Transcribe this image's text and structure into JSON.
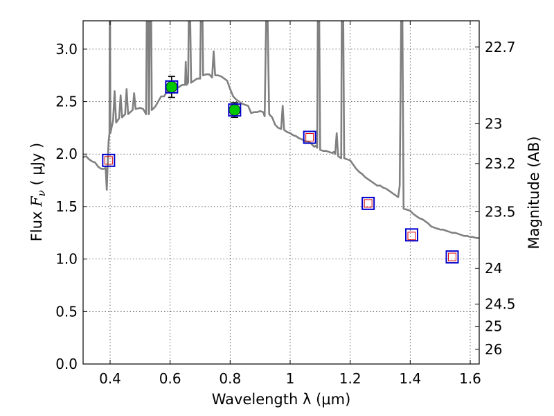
{
  "chart_data": {
    "type": "line",
    "title": "",
    "xlabel": "Wavelength  λ (μm)",
    "ylabel": "Flux  F_ν  ( μJy )",
    "ylabel_parts": {
      "prefix": "Flux  ",
      "symbol": "F",
      "subscript": "ν",
      "unit": "  ( μJy )"
    },
    "y2label": "Magnitude (AB)",
    "xlim": [
      0.31,
      1.63
    ],
    "ylim": [
      0.0,
      3.27
    ],
    "grid": true,
    "x_ticks": [
      {
        "value": 0.4,
        "label": "0.4"
      },
      {
        "value": 0.6,
        "label": "0.6"
      },
      {
        "value": 0.8,
        "label": "0.8"
      },
      {
        "value": 1.0,
        "label": "1"
      },
      {
        "value": 1.2,
        "label": "1.2"
      },
      {
        "value": 1.4,
        "label": "1.4"
      },
      {
        "value": 1.6,
        "label": "1.6"
      }
    ],
    "y_ticks": [
      {
        "value": 0.0,
        "label": "0.0"
      },
      {
        "value": 0.5,
        "label": "0.5"
      },
      {
        "value": 1.0,
        "label": "1.0"
      },
      {
        "value": 1.5,
        "label": "1.5"
      },
      {
        "value": 2.0,
        "label": "2.0"
      },
      {
        "value": 2.5,
        "label": "2.5"
      },
      {
        "value": 3.0,
        "label": "3.0"
      }
    ],
    "y2_ticks": [
      {
        "flux": 3.02,
        "label": "22.7"
      },
      {
        "flux": 2.29,
        "label": "23"
      },
      {
        "flux": 1.91,
        "label": "23.2"
      },
      {
        "flux": 1.45,
        "label": "23.5"
      },
      {
        "flux": 0.91,
        "label": "24"
      },
      {
        "flux": 0.57,
        "label": "24.5"
      },
      {
        "flux": 0.36,
        "label": "25"
      },
      {
        "flux": 0.14,
        "label": "26"
      }
    ],
    "series": [
      {
        "name": "template spectrum",
        "kind": "line",
        "color": "#808080",
        "points": [
          [
            0.31,
            1.97
          ],
          [
            0.32,
            1.98
          ],
          [
            0.33,
            1.95
          ],
          [
            0.34,
            1.93
          ],
          [
            0.35,
            1.92
          ],
          [
            0.36,
            1.88
          ],
          [
            0.37,
            1.86
          ],
          [
            0.38,
            1.86
          ],
          [
            0.385,
            1.87
          ],
          [
            0.389,
            1.66
          ],
          [
            0.392,
            1.9
          ],
          [
            0.395,
            2.12
          ],
          [
            0.398,
            2.2
          ],
          [
            0.3985,
            3.27
          ],
          [
            0.4,
            3.27
          ],
          [
            0.401,
            2.2
          ],
          [
            0.41,
            2.32
          ],
          [
            0.415,
            2.6
          ],
          [
            0.42,
            2.3
          ],
          [
            0.43,
            2.34
          ],
          [
            0.435,
            2.56
          ],
          [
            0.44,
            2.35
          ],
          [
            0.45,
            2.38
          ],
          [
            0.455,
            2.62
          ],
          [
            0.46,
            2.38
          ],
          [
            0.475,
            2.42
          ],
          [
            0.48,
            2.58
          ],
          [
            0.485,
            2.43
          ],
          [
            0.5,
            2.44
          ],
          [
            0.51,
            2.43
          ],
          [
            0.52,
            2.38
          ],
          [
            0.522,
            3.27
          ],
          [
            0.527,
            3.27
          ],
          [
            0.529,
            2.38
          ],
          [
            0.53,
            2.4
          ],
          [
            0.532,
            3.27
          ],
          [
            0.537,
            3.27
          ],
          [
            0.539,
            2.42
          ],
          [
            0.55,
            2.45
          ],
          [
            0.56,
            2.5
          ],
          [
            0.57,
            2.55
          ],
          [
            0.58,
            2.55
          ],
          [
            0.59,
            2.6
          ],
          [
            0.6,
            2.58
          ],
          [
            0.61,
            2.6
          ],
          [
            0.62,
            2.63
          ],
          [
            0.63,
            2.64
          ],
          [
            0.64,
            2.66
          ],
          [
            0.65,
            2.66
          ],
          [
            0.652,
            2.88
          ],
          [
            0.655,
            2.66
          ],
          [
            0.66,
            2.68
          ],
          [
            0.662,
            3.27
          ],
          [
            0.667,
            3.27
          ],
          [
            0.67,
            2.68
          ],
          [
            0.68,
            2.7
          ],
          [
            0.69,
            2.72
          ],
          [
            0.7,
            2.72
          ],
          [
            0.702,
            3.27
          ],
          [
            0.708,
            3.27
          ],
          [
            0.71,
            2.75
          ],
          [
            0.72,
            2.76
          ],
          [
            0.73,
            2.76
          ],
          [
            0.74,
            2.73
          ],
          [
            0.745,
            2.98
          ],
          [
            0.75,
            2.75
          ],
          [
            0.76,
            2.75
          ],
          [
            0.77,
            2.74
          ],
          [
            0.78,
            2.72
          ],
          [
            0.79,
            2.7
          ],
          [
            0.8,
            2.62
          ],
          [
            0.81,
            2.55
          ],
          [
            0.82,
            2.52
          ],
          [
            0.83,
            2.5
          ],
          [
            0.84,
            2.48
          ],
          [
            0.85,
            2.47
          ],
          [
            0.86,
            2.46
          ],
          [
            0.87,
            2.39
          ],
          [
            0.88,
            2.4
          ],
          [
            0.89,
            2.4
          ],
          [
            0.9,
            2.41
          ],
          [
            0.91,
            2.4
          ],
          [
            0.915,
            2.36
          ],
          [
            0.92,
            3.27
          ],
          [
            0.925,
            3.27
          ],
          [
            0.93,
            2.38
          ],
          [
            0.94,
            2.35
          ],
          [
            0.95,
            2.28
          ],
          [
            0.96,
            2.25
          ],
          [
            0.97,
            2.24
          ],
          [
            0.975,
            2.46
          ],
          [
            0.98,
            2.23
          ],
          [
            0.99,
            2.21
          ],
          [
            1.0,
            2.2
          ],
          [
            1.01,
            2.18
          ],
          [
            1.02,
            2.17
          ],
          [
            1.03,
            2.15
          ],
          [
            1.04,
            2.14
          ],
          [
            1.05,
            2.12
          ],
          [
            1.06,
            2.12
          ],
          [
            1.07,
            2.1
          ],
          [
            1.08,
            2.07
          ],
          [
            1.085,
            2.08
          ],
          [
            1.09,
            2.06
          ],
          [
            1.092,
            3.27
          ],
          [
            1.097,
            3.27
          ],
          [
            1.1,
            2.04
          ],
          [
            1.11,
            2.03
          ],
          [
            1.12,
            2.03
          ],
          [
            1.13,
            2.02
          ],
          [
            1.14,
            2.01
          ],
          [
            1.145,
            2.02
          ],
          [
            1.15,
            2.0
          ],
          [
            1.155,
            2.2
          ],
          [
            1.16,
            1.98
          ],
          [
            1.17,
            1.96
          ],
          [
            1.172,
            3.27
          ],
          [
            1.177,
            3.27
          ],
          [
            1.18,
            1.96
          ],
          [
            1.19,
            1.95
          ],
          [
            1.2,
            1.94
          ],
          [
            1.21,
            1.9
          ],
          [
            1.22,
            1.86
          ],
          [
            1.23,
            1.83
          ],
          [
            1.24,
            1.81
          ],
          [
            1.25,
            1.78
          ],
          [
            1.26,
            1.76
          ],
          [
            1.27,
            1.74
          ],
          [
            1.28,
            1.72
          ],
          [
            1.29,
            1.7
          ],
          [
            1.3,
            1.7
          ],
          [
            1.31,
            1.68
          ],
          [
            1.32,
            1.67
          ],
          [
            1.33,
            1.65
          ],
          [
            1.34,
            1.63
          ],
          [
            1.35,
            1.61
          ],
          [
            1.36,
            1.59
          ],
          [
            1.365,
            1.7
          ],
          [
            1.37,
            3.27
          ],
          [
            1.374,
            3.27
          ],
          [
            1.378,
            1.48
          ],
          [
            1.39,
            1.47
          ],
          [
            1.4,
            1.46
          ],
          [
            1.41,
            1.43
          ],
          [
            1.42,
            1.41
          ],
          [
            1.43,
            1.39
          ],
          [
            1.44,
            1.38
          ],
          [
            1.45,
            1.36
          ],
          [
            1.46,
            1.34
          ],
          [
            1.47,
            1.31
          ],
          [
            1.48,
            1.3
          ],
          [
            1.49,
            1.29
          ],
          [
            1.5,
            1.28
          ],
          [
            1.51,
            1.28
          ],
          [
            1.52,
            1.27
          ],
          [
            1.53,
            1.26
          ],
          [
            1.54,
            1.25
          ],
          [
            1.55,
            1.25
          ],
          [
            1.56,
            1.24
          ],
          [
            1.57,
            1.23
          ],
          [
            1.58,
            1.22
          ],
          [
            1.59,
            1.22
          ],
          [
            1.6,
            1.21
          ],
          [
            1.61,
            1.21
          ],
          [
            1.62,
            1.2
          ],
          [
            1.63,
            1.2
          ]
        ]
      },
      {
        "name": "observed photometry",
        "kind": "circles",
        "color": "#00c800",
        "points": [
          {
            "x": 0.605,
            "y": 2.64,
            "yerr": 0.1
          },
          {
            "x": 0.815,
            "y": 2.42,
            "yerr": 0.07
          }
        ]
      },
      {
        "name": "model photometry (blue)",
        "kind": "squares",
        "color": "#0000cc",
        "points": [
          {
            "x": 0.395,
            "y": 1.94
          },
          {
            "x": 0.605,
            "y": 2.64
          },
          {
            "x": 0.815,
            "y": 2.42
          },
          {
            "x": 1.065,
            "y": 2.16
          },
          {
            "x": 1.26,
            "y": 1.53
          },
          {
            "x": 1.405,
            "y": 1.23
          },
          {
            "x": 1.54,
            "y": 1.02
          }
        ]
      },
      {
        "name": "model photometry (red)",
        "kind": "small-squares",
        "color": "#dd0000",
        "points": [
          {
            "x": 0.395,
            "y": 1.94
          },
          {
            "x": 1.065,
            "y": 2.16
          },
          {
            "x": 1.26,
            "y": 1.53
          },
          {
            "x": 1.405,
            "y": 1.22
          },
          {
            "x": 1.54,
            "y": 1.02
          }
        ]
      }
    ]
  }
}
